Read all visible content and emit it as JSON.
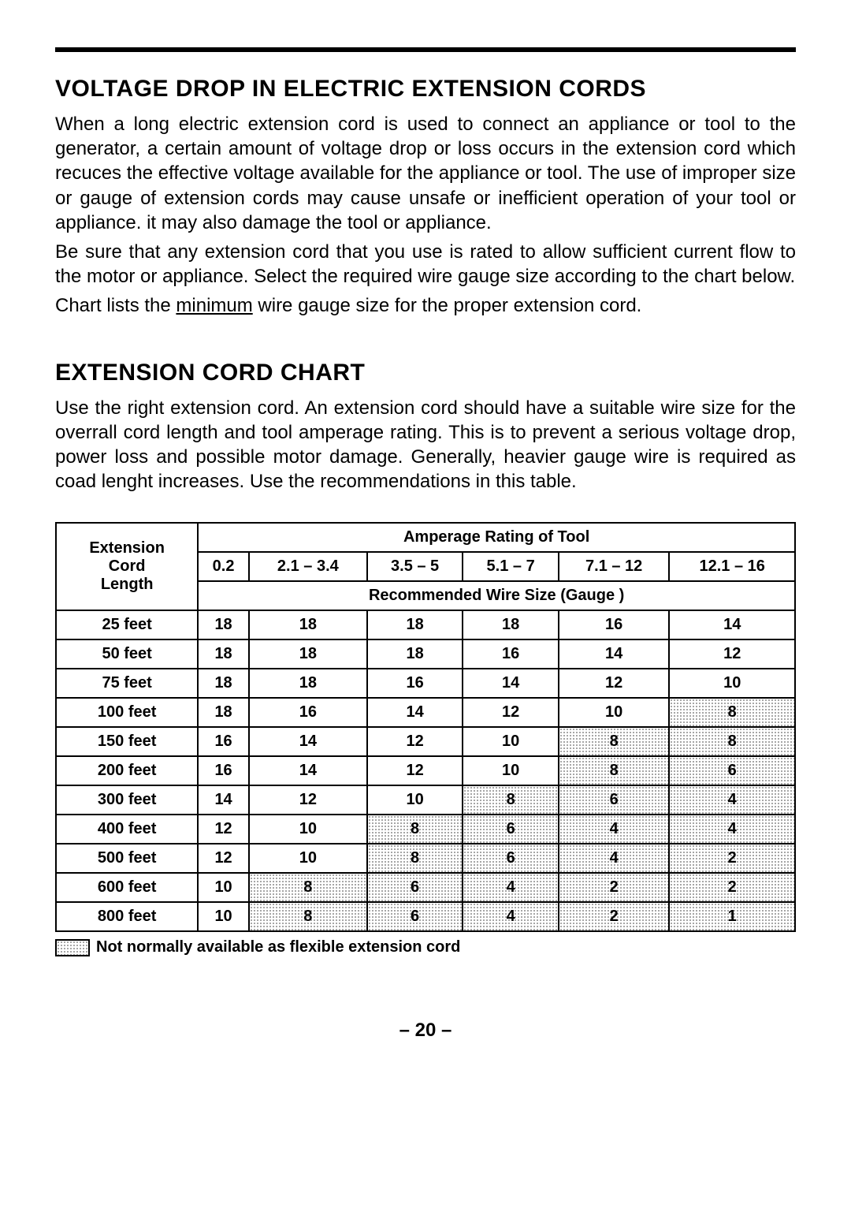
{
  "section1": {
    "heading": "VOLTAGE DROP IN ELECTRIC EXTENSION CORDS",
    "para1": "When a long electric extension cord is used to connect an appliance or tool to the generator, a certain amount of voltage drop or loss occurs in the extension cord which recuces the effective voltage available for the appliance or tool. The use of improper size or gauge of extension cords may cause unsafe or inefficient operation of your tool or appliance. it may also damage the tool or appliance.",
    "para2": "Be sure that any extension cord that you use is rated to allow sufficient current flow to the motor or appliance. Select the required wire gauge size according to the chart below.",
    "para3_prefix": "Chart lists the ",
    "para3_underlined": "minimum",
    "para3_suffix": " wire gauge size for the proper extension cord."
  },
  "section2": {
    "heading": "EXTENSION CORD CHART",
    "para1": "Use the right extension cord. An extension cord should have a suitable wire size for the overrall cord length and tool amperage rating. This is to prevent a serious voltage drop, power loss and possible motor damage. Generally, heavier gauge wire is required as coad lenght increases. Use the recommendations in this table."
  },
  "table": {
    "row_label_line1": "Extension",
    "row_label_line2": "Cord",
    "row_label_line3": "Length",
    "header_top": "Amperage Rating of Tool",
    "header_bottom": "Recommended Wire Size (Gauge )",
    "amp_columns": [
      "0.2",
      "2.1 – 3.4",
      "3.5 – 5",
      "5.1 – 7",
      "7.1 – 12",
      "12.1 – 16"
    ],
    "rows": [
      {
        "len": "25 feet",
        "cells": [
          {
            "v": "18"
          },
          {
            "v": "18"
          },
          {
            "v": "18"
          },
          {
            "v": "18"
          },
          {
            "v": "16"
          },
          {
            "v": "14"
          }
        ]
      },
      {
        "len": "50 feet",
        "cells": [
          {
            "v": "18"
          },
          {
            "v": "18"
          },
          {
            "v": "18"
          },
          {
            "v": "16"
          },
          {
            "v": "14"
          },
          {
            "v": "12"
          }
        ]
      },
      {
        "len": "75 feet",
        "cells": [
          {
            "v": "18"
          },
          {
            "v": "18"
          },
          {
            "v": "16"
          },
          {
            "v": "14"
          },
          {
            "v": "12"
          },
          {
            "v": "10"
          }
        ]
      },
      {
        "len": "100 feet",
        "cells": [
          {
            "v": "18"
          },
          {
            "v": "16"
          },
          {
            "v": "14"
          },
          {
            "v": "12"
          },
          {
            "v": "10"
          },
          {
            "v": "8",
            "s": true
          }
        ]
      },
      {
        "len": "150 feet",
        "cells": [
          {
            "v": "16"
          },
          {
            "v": "14"
          },
          {
            "v": "12"
          },
          {
            "v": "10"
          },
          {
            "v": "8",
            "s": true
          },
          {
            "v": "8",
            "s": true
          }
        ]
      },
      {
        "len": "200 feet",
        "cells": [
          {
            "v": "16"
          },
          {
            "v": "14"
          },
          {
            "v": "12"
          },
          {
            "v": "10"
          },
          {
            "v": "8",
            "s": true
          },
          {
            "v": "6",
            "s": true
          }
        ]
      },
      {
        "len": "300 feet",
        "cells": [
          {
            "v": "14"
          },
          {
            "v": "12"
          },
          {
            "v": "10"
          },
          {
            "v": "8",
            "s": true
          },
          {
            "v": "6",
            "s": true
          },
          {
            "v": "4",
            "s": true
          }
        ]
      },
      {
        "len": "400 feet",
        "cells": [
          {
            "v": "12"
          },
          {
            "v": "10"
          },
          {
            "v": "8",
            "s": true
          },
          {
            "v": "6",
            "s": true
          },
          {
            "v": "4",
            "s": true
          },
          {
            "v": "4",
            "s": true
          }
        ]
      },
      {
        "len": "500 feet",
        "cells": [
          {
            "v": "12"
          },
          {
            "v": "10"
          },
          {
            "v": "8",
            "s": true
          },
          {
            "v": "6",
            "s": true
          },
          {
            "v": "4",
            "s": true
          },
          {
            "v": "2",
            "s": true
          }
        ]
      },
      {
        "len": "600 feet",
        "cells": [
          {
            "v": "10"
          },
          {
            "v": "8",
            "s": true
          },
          {
            "v": "6",
            "s": true
          },
          {
            "v": "4",
            "s": true
          },
          {
            "v": "2",
            "s": true
          },
          {
            "v": "2",
            "s": true
          }
        ]
      },
      {
        "len": "800 feet",
        "cells": [
          {
            "v": "10"
          },
          {
            "v": "8",
            "s": true
          },
          {
            "v": "6",
            "s": true
          },
          {
            "v": "4",
            "s": true
          },
          {
            "v": "2",
            "s": true
          },
          {
            "v": "1",
            "s": true
          }
        ]
      }
    ]
  },
  "legend": "Not normally available as flexible extension cord",
  "page_number": "– 20 –"
}
